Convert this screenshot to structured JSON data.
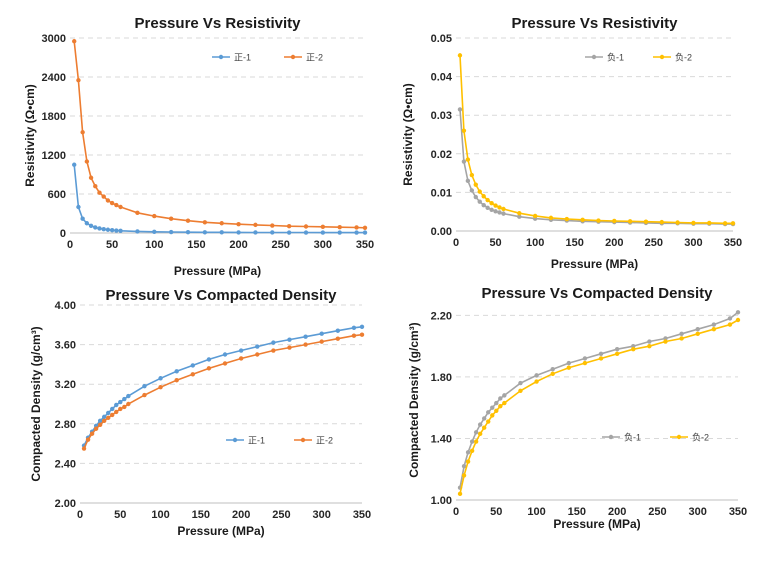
{
  "chart_data": [
    {
      "id": "tl",
      "type": "line",
      "title": "Pressure Vs Resistivity",
      "xlabel": "Pressure (MPa)",
      "ylabel": "Resistivity (Ω•cm)",
      "xlim": [
        0,
        350
      ],
      "ylim": [
        0,
        3000
      ],
      "xticks": [
        0,
        50,
        100,
        150,
        200,
        250,
        300,
        350
      ],
      "yticks": [
        0,
        600,
        1200,
        1800,
        2400,
        3000
      ],
      "xtick_labels": [
        "0",
        "50",
        "100",
        "150",
        "200",
        "250",
        "300",
        "350"
      ],
      "ytick_labels": [
        "0",
        "600",
        "1200",
        "1800",
        "2400",
        "3000"
      ],
      "grid": true,
      "legend_position": "top-right",
      "series": [
        {
          "name": "正-1",
          "color": "#5B9BD5",
          "x": [
            5,
            10,
            15,
            20,
            25,
            30,
            35,
            40,
            45,
            50,
            55,
            60,
            80,
            100,
            120,
            140,
            160,
            180,
            200,
            220,
            240,
            260,
            280,
            300,
            320,
            340,
            350
          ],
          "y": [
            1050,
            400,
            220,
            150,
            110,
            85,
            70,
            58,
            50,
            44,
            38,
            34,
            24,
            18,
            15,
            13,
            11,
            10,
            9,
            8,
            8,
            7,
            7,
            6,
            6,
            6,
            6
          ]
        },
        {
          "name": "正-2",
          "color": "#ED7D31",
          "x": [
            5,
            10,
            15,
            20,
            25,
            30,
            35,
            40,
            45,
            50,
            55,
            60,
            80,
            100,
            120,
            140,
            160,
            180,
            200,
            220,
            240,
            260,
            280,
            300,
            320,
            340,
            350
          ],
          "y": [
            2950,
            2350,
            1550,
            1100,
            850,
            720,
            620,
            560,
            500,
            460,
            430,
            400,
            310,
            260,
            220,
            190,
            165,
            150,
            135,
            125,
            115,
            105,
            100,
            95,
            90,
            85,
            80
          ]
        }
      ]
    },
    {
      "id": "tr",
      "type": "line",
      "title": "Pressure Vs Resistivity",
      "xlabel": "Pressure (MPa)",
      "ylabel": "Resistivity (Ω•cm)",
      "xlim": [
        0,
        350
      ],
      "ylim": [
        0,
        0.05
      ],
      "xticks": [
        0,
        50,
        100,
        150,
        200,
        250,
        300,
        350
      ],
      "yticks": [
        0,
        0.01,
        0.02,
        0.03,
        0.04,
        0.05
      ],
      "xtick_labels": [
        "0",
        "50",
        "100",
        "150",
        "200",
        "250",
        "300",
        "350"
      ],
      "ytick_labels": [
        "0.00",
        "0.01",
        "0.02",
        "0.03",
        "0.04",
        "0.05"
      ],
      "grid": true,
      "legend_position": "top-right",
      "series": [
        {
          "name": "负-1",
          "color": "#A5A5A5",
          "x": [
            5,
            10,
            15,
            20,
            25,
            30,
            35,
            40,
            45,
            50,
            55,
            60,
            80,
            100,
            120,
            140,
            160,
            180,
            200,
            220,
            240,
            260,
            280,
            300,
            320,
            340,
            350
          ],
          "y": [
            0.0315,
            0.018,
            0.013,
            0.0105,
            0.0088,
            0.0076,
            0.0067,
            0.006,
            0.0055,
            0.0051,
            0.0048,
            0.0045,
            0.0037,
            0.0032,
            0.0029,
            0.0027,
            0.0025,
            0.0024,
            0.0023,
            0.0022,
            0.0021,
            0.002,
            0.002,
            0.0019,
            0.0019,
            0.0018,
            0.0018
          ]
        },
        {
          "name": "负-2",
          "color": "#FFC000",
          "x": [
            5,
            10,
            15,
            20,
            25,
            30,
            35,
            40,
            45,
            50,
            55,
            60,
            80,
            100,
            120,
            140,
            160,
            180,
            200,
            220,
            240,
            260,
            280,
            300,
            320,
            340,
            350
          ],
          "y": [
            0.0455,
            0.026,
            0.0185,
            0.0145,
            0.012,
            0.0102,
            0.009,
            0.008,
            0.0072,
            0.0066,
            0.0061,
            0.0057,
            0.0046,
            0.0039,
            0.0034,
            0.0031,
            0.0029,
            0.0027,
            0.0026,
            0.0025,
            0.0024,
            0.0023,
            0.0022,
            0.0021,
            0.0021,
            0.002,
            0.002
          ]
        }
      ]
    },
    {
      "id": "bl",
      "type": "line",
      "title": "Pressure  Vs Compacted Density",
      "xlabel": "Pressure  (MPa)",
      "ylabel": "Compacted Density (g/cm³)",
      "xlim": [
        0,
        350
      ],
      "ylim": [
        2.0,
        4.0
      ],
      "xticks": [
        0,
        50,
        100,
        150,
        200,
        250,
        300,
        350
      ],
      "yticks": [
        2.0,
        2.4,
        2.8,
        3.2,
        3.6,
        4.0
      ],
      "xtick_labels": [
        "0",
        "50",
        "100",
        "150",
        "200",
        "250",
        "300",
        "350"
      ],
      "ytick_labels": [
        "2.00",
        "2.40",
        "2.80",
        "3.20",
        "3.60",
        "4.00"
      ],
      "grid": true,
      "legend_position": "center-right",
      "series": [
        {
          "name": "正-1",
          "color": "#5B9BD5",
          "x": [
            5,
            10,
            15,
            20,
            25,
            30,
            35,
            40,
            45,
            50,
            55,
            60,
            80,
            100,
            120,
            140,
            160,
            180,
            200,
            220,
            240,
            260,
            280,
            300,
            320,
            340,
            350
          ],
          "y": [
            2.58,
            2.66,
            2.72,
            2.78,
            2.83,
            2.87,
            2.91,
            2.95,
            2.99,
            3.02,
            3.05,
            3.08,
            3.18,
            3.26,
            3.33,
            3.39,
            3.45,
            3.5,
            3.54,
            3.58,
            3.62,
            3.65,
            3.68,
            3.71,
            3.74,
            3.77,
            3.78
          ]
        },
        {
          "name": "正-2",
          "color": "#ED7D31",
          "x": [
            5,
            10,
            15,
            20,
            25,
            30,
            35,
            40,
            45,
            50,
            55,
            60,
            80,
            100,
            120,
            140,
            160,
            180,
            200,
            220,
            240,
            260,
            280,
            300,
            320,
            340,
            350
          ],
          "y": [
            2.55,
            2.64,
            2.7,
            2.75,
            2.79,
            2.83,
            2.86,
            2.89,
            2.92,
            2.95,
            2.97,
            3.0,
            3.09,
            3.17,
            3.24,
            3.3,
            3.36,
            3.41,
            3.46,
            3.5,
            3.54,
            3.57,
            3.6,
            3.63,
            3.66,
            3.69,
            3.7
          ]
        }
      ]
    },
    {
      "id": "br",
      "type": "line",
      "title": "Pressure  Vs Compacted Density",
      "xlabel": "Pressure  (MPa)",
      "ylabel": "Compacted Density (g/cm³)",
      "xlim": [
        0,
        350
      ],
      "ylim": [
        1.0,
        2.3
      ],
      "xticks": [
        0,
        50,
        100,
        150,
        200,
        250,
        300,
        350
      ],
      "yticks": [
        1.0,
        1.4,
        1.8,
        2.2
      ],
      "xtick_labels": [
        "0",
        "50",
        "100",
        "150",
        "200",
        "250",
        "300",
        "350"
      ],
      "ytick_labels": [
        "1.00",
        "1.40",
        "1.80",
        "2.20"
      ],
      "grid": true,
      "legend_position": "bottom-center",
      "series": [
        {
          "name": "负-1",
          "color": "#A5A5A5",
          "x": [
            5,
            10,
            15,
            20,
            25,
            30,
            35,
            40,
            45,
            50,
            55,
            60,
            80,
            100,
            120,
            140,
            160,
            180,
            200,
            220,
            240,
            260,
            280,
            300,
            320,
            340,
            350
          ],
          "y": [
            1.08,
            1.22,
            1.31,
            1.38,
            1.44,
            1.49,
            1.53,
            1.57,
            1.6,
            1.63,
            1.66,
            1.68,
            1.76,
            1.81,
            1.85,
            1.89,
            1.92,
            1.95,
            1.98,
            2.0,
            2.03,
            2.05,
            2.08,
            2.11,
            2.14,
            2.18,
            2.22
          ]
        },
        {
          "name": "负-2",
          "color": "#FFC000",
          "x": [
            5,
            10,
            15,
            20,
            25,
            30,
            35,
            40,
            45,
            50,
            55,
            60,
            80,
            100,
            120,
            140,
            160,
            180,
            200,
            220,
            240,
            260,
            280,
            300,
            320,
            340,
            350
          ],
          "y": [
            1.04,
            1.16,
            1.25,
            1.32,
            1.38,
            1.43,
            1.47,
            1.51,
            1.55,
            1.58,
            1.61,
            1.63,
            1.71,
            1.77,
            1.82,
            1.86,
            1.89,
            1.92,
            1.95,
            1.98,
            2.0,
            2.03,
            2.05,
            2.08,
            2.11,
            2.14,
            2.17
          ]
        }
      ]
    }
  ]
}
